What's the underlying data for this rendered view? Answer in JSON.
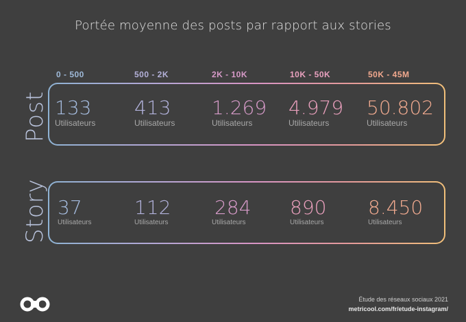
{
  "title": "Portée moyenne des posts par rapport aux stories",
  "ranges": [
    "0 - 500",
    "500 - 2K",
    "2K - 10K",
    "10K - 50K",
    "50K - 45M"
  ],
  "colors": [
    "#9fbad9",
    "#b4b1d9",
    "#d79ac8",
    "#e9a1bf",
    "#f1a88e"
  ],
  "post": {
    "label": "Post",
    "values": [
      "133",
      "413",
      "1.269",
      "4.979",
      "50.802"
    ],
    "unit": "Utilisateurs"
  },
  "story": {
    "label": "Story",
    "values": [
      "37",
      "112",
      "284",
      "890",
      "8.450"
    ],
    "unit": "Utilisateurs"
  },
  "footer": {
    "note": "Étude des réseaux sociaux 2021",
    "url": "metricool.com/fr/etude-instagram/"
  },
  "logo_icon": "metricool-infinity-logo-icon"
}
